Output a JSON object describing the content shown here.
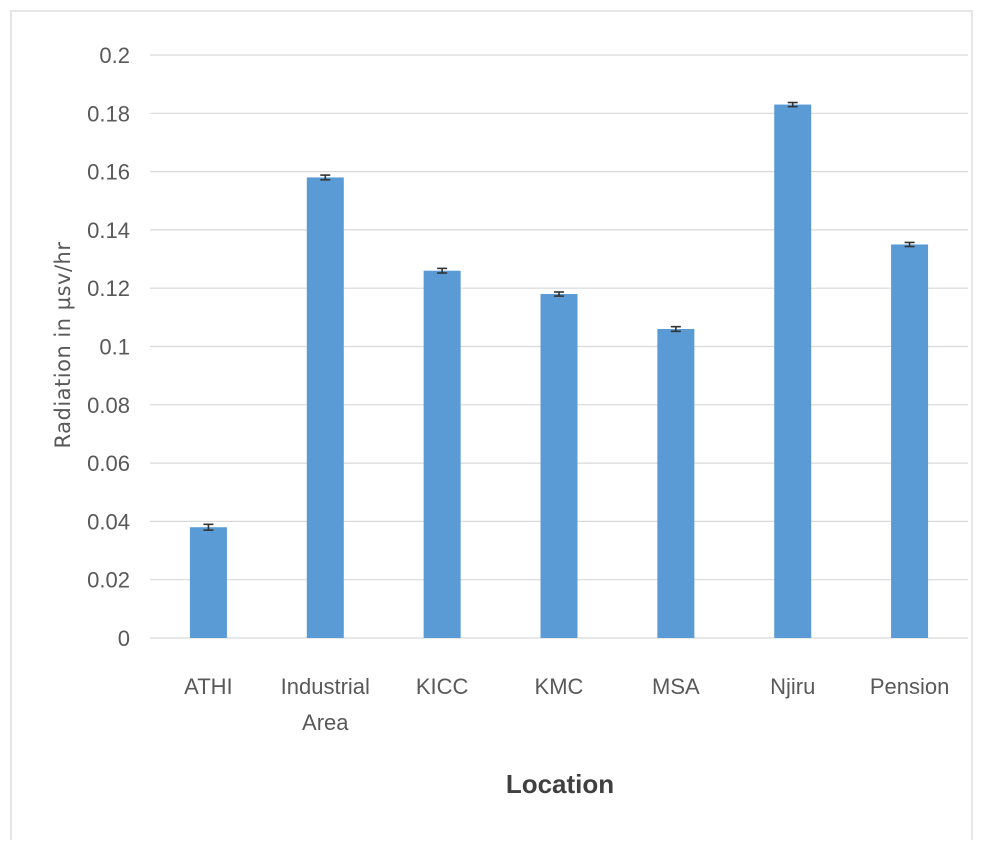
{
  "chart_data": {
    "type": "bar",
    "categories": [
      [
        "ATHI"
      ],
      [
        "Industrial",
        "Area"
      ],
      [
        "KICC"
      ],
      [
        "KMC"
      ],
      [
        "MSA"
      ],
      [
        "Njiru"
      ],
      [
        "Pension"
      ]
    ],
    "values": [
      0.038,
      0.158,
      0.126,
      0.118,
      0.106,
      0.183,
      0.135
    ],
    "errors": [
      0.001,
      0.0008,
      0.0008,
      0.0007,
      0.0008,
      0.0007,
      0.0007
    ],
    "xlabel": "Location",
    "ylabel": "Radiation in µsv/hr",
    "ylim": [
      0,
      0.2
    ],
    "yticks": [
      "0",
      "0.02",
      "0.04",
      "0.06",
      "0.08",
      "0.1",
      "0.12",
      "0.14",
      "0.16",
      "0.18",
      "0.2"
    ],
    "colors": {
      "bar": "#5b9bd5",
      "grid": "#d9d9d9",
      "error": "#333333"
    },
    "grid": true,
    "legend": "none"
  }
}
